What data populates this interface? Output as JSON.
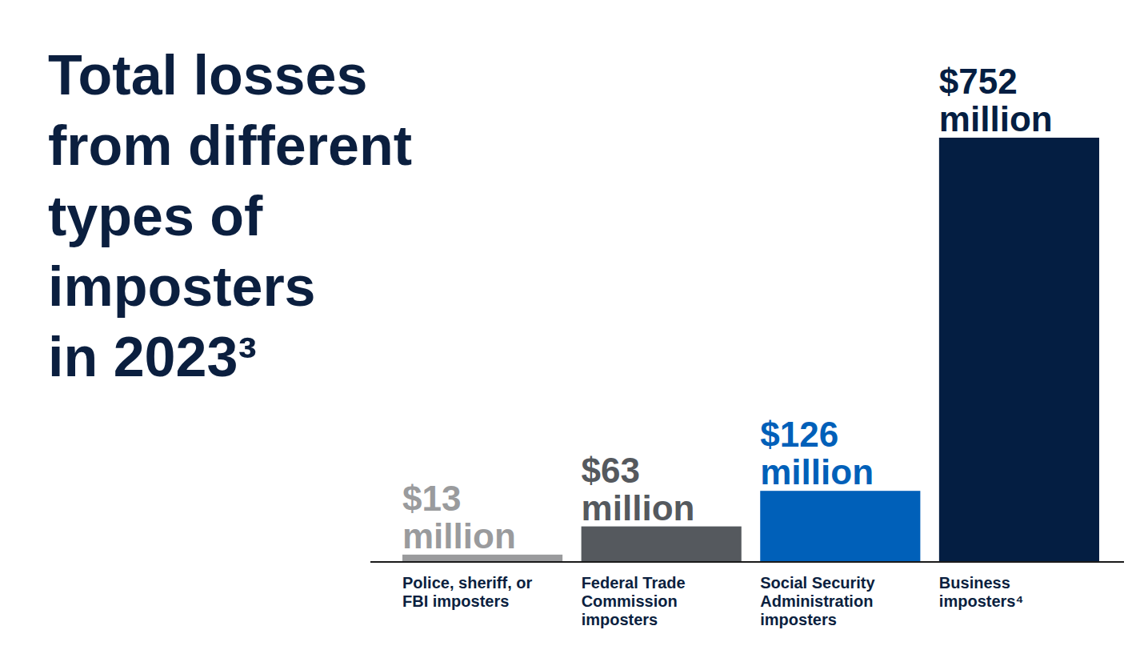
{
  "chart_data": {
    "type": "bar",
    "title": [
      "Total losses",
      "from different",
      "types of",
      "imposters",
      "in 2023³"
    ],
    "categories": [
      "Police, sheriff, or FBI imposters",
      "Federal Trade Commission imposters",
      "Social Security Administration imposters",
      "Business imposters⁴"
    ],
    "values": [
      13,
      63,
      126,
      752
    ],
    "value_labels": [
      "$13 million",
      "$63 million",
      "$126 million",
      "$752 million"
    ],
    "colors": [
      "#9a9b9d",
      "#55595e",
      "#0060b9",
      "#041e42"
    ],
    "ylim": [
      0,
      752
    ],
    "data_labels": true,
    "tick_labels": "x"
  }
}
